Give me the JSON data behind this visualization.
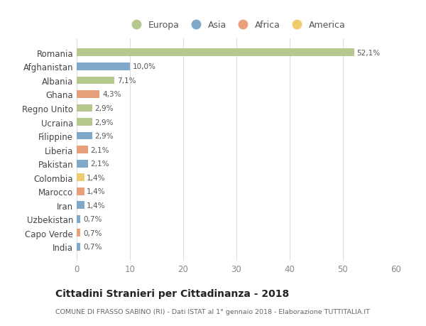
{
  "countries": [
    "Romania",
    "Afghanistan",
    "Albania",
    "Ghana",
    "Regno Unito",
    "Ucraina",
    "Filippine",
    "Liberia",
    "Pakistan",
    "Colombia",
    "Marocco",
    "Iran",
    "Uzbekistan",
    "Capo Verde",
    "India"
  ],
  "values": [
    52.1,
    10.0,
    7.1,
    4.3,
    2.9,
    2.9,
    2.9,
    2.1,
    2.1,
    1.4,
    1.4,
    1.4,
    0.7,
    0.7,
    0.7
  ],
  "labels": [
    "52,1%",
    "10,0%",
    "7,1%",
    "4,3%",
    "2,9%",
    "2,9%",
    "2,9%",
    "2,1%",
    "2,1%",
    "1,4%",
    "1,4%",
    "1,4%",
    "0,7%",
    "0,7%",
    "0,7%"
  ],
  "continents": [
    "Europa",
    "Asia",
    "Europa",
    "Africa",
    "Europa",
    "Europa",
    "Asia",
    "Africa",
    "Asia",
    "America",
    "Africa",
    "Asia",
    "Asia",
    "Africa",
    "Asia"
  ],
  "continent_colors": {
    "Europa": "#b5c98e",
    "Asia": "#7fa8c9",
    "Africa": "#e8a07a",
    "America": "#f0cc70"
  },
  "legend_order": [
    "Europa",
    "Asia",
    "Africa",
    "America"
  ],
  "title": "Cittadini Stranieri per Cittadinanza - 2018",
  "subtitle": "COMUNE DI FRASSO SABINO (RI) - Dati ISTAT al 1° gennaio 2018 - Elaborazione TUTTITALIA.IT",
  "xlim": [
    0,
    60
  ],
  "xticks": [
    0,
    10,
    20,
    30,
    40,
    50,
    60
  ],
  "background_color": "#ffffff",
  "grid_color": "#dddddd",
  "bar_height": 0.55
}
